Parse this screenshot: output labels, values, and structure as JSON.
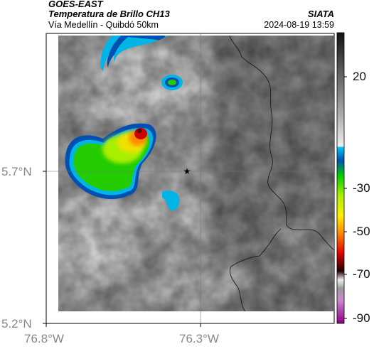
{
  "header": {
    "satellite": "GOES-EAST",
    "product": "Temperatura de Brillo CH13",
    "region": "Vía Medellín - Quibdó 50km",
    "agency": "SIATA",
    "datetime": "2024-08-19 13:59"
  },
  "axes": {
    "lat_ticks": [
      "5.7°N",
      "5.2°N"
    ],
    "lon_ticks": [
      "76.8°W",
      "76.3°W"
    ]
  },
  "colorbar": {
    "ticks": [
      "20",
      "-30",
      "-50",
      "-70",
      "-90"
    ]
  },
  "colors": {
    "cold_red": "#cc0000",
    "yellow": "#f0e000",
    "green": "#22cc00",
    "cyan": "#00b4e6",
    "blue": "#0044aa"
  }
}
